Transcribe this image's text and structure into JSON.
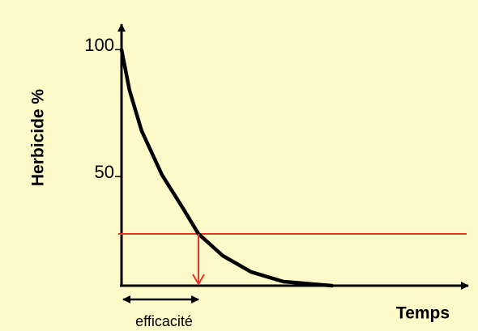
{
  "chart_data": {
    "type": "line",
    "ylabel": "Herbicide %",
    "xlabel": "Temps",
    "ylim": [
      7,
      110
    ],
    "yticks": [
      100,
      50
    ],
    "xlim": [
      0,
      100
    ],
    "series": [
      {
        "color": "#000000",
        "x": [
          0,
          2.3,
          5.8,
          11.7,
          17.5,
          22.2,
          29.2,
          37.4,
          46.7,
          60.7
        ],
        "values": [
          100,
          84,
          68,
          50.6,
          38,
          27.4,
          18.8,
          12.4,
          8.6,
          7
        ]
      }
    ],
    "threshold": {
      "value": 27.4,
      "color": "#e8322a"
    },
    "annotation": {
      "text": "efficacité",
      "x": 22.2
    }
  }
}
